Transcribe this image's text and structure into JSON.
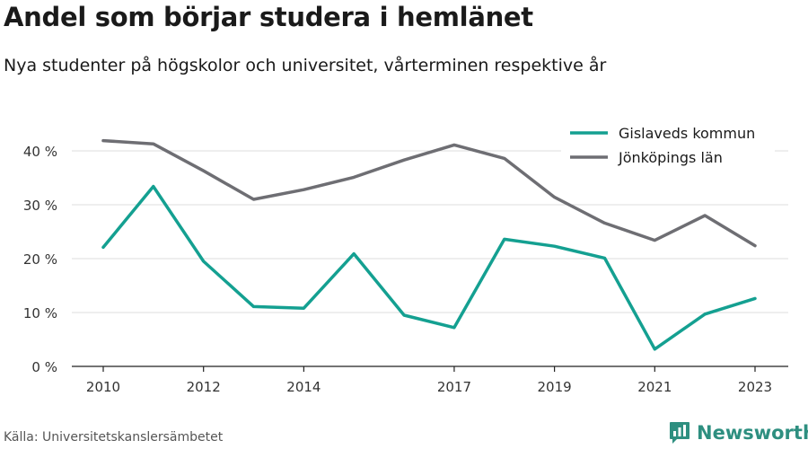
{
  "header": {
    "title": "Andel som börjar studera i hemlänet",
    "subtitle": "Nya studenter på högskolor och universitet, vårterminen respektive år"
  },
  "footer": {
    "source": "Källa: Universitetskanslersämbetet",
    "brand": "Newsworthy",
    "brand_icon": "newsworthy-logo-icon"
  },
  "chart_data": {
    "type": "line",
    "x": [
      2010,
      2011,
      2012,
      2013,
      2014,
      2015,
      2016,
      2017,
      2018,
      2019,
      2020,
      2021,
      2022,
      2023
    ],
    "x_tick_labels": [
      "2010",
      "2012",
      "2014",
      "2017",
      "2019",
      "2021",
      "2023"
    ],
    "y_ticks": [
      0,
      10,
      20,
      30,
      40
    ],
    "y_tick_labels": [
      "0 %",
      "10 %",
      "20 %",
      "30 %",
      "40 %"
    ],
    "ylim": [
      0,
      45
    ],
    "grid": true,
    "legend_position": "top-right",
    "series": [
      {
        "name": "Gislaveds kommun",
        "color": "#14a091",
        "values": [
          22.1,
          33.4,
          19.5,
          11.1,
          10.8,
          20.9,
          9.5,
          7.2,
          23.6,
          22.3,
          20.1,
          3.2,
          9.7,
          12.6
        ]
      },
      {
        "name": "Jönköpings län",
        "color": "#6e6e73",
        "values": [
          41.9,
          41.3,
          36.3,
          31.0,
          32.8,
          35.1,
          38.3,
          41.1,
          38.6,
          31.4,
          26.6,
          23.4,
          28.0,
          22.4
        ]
      }
    ]
  }
}
